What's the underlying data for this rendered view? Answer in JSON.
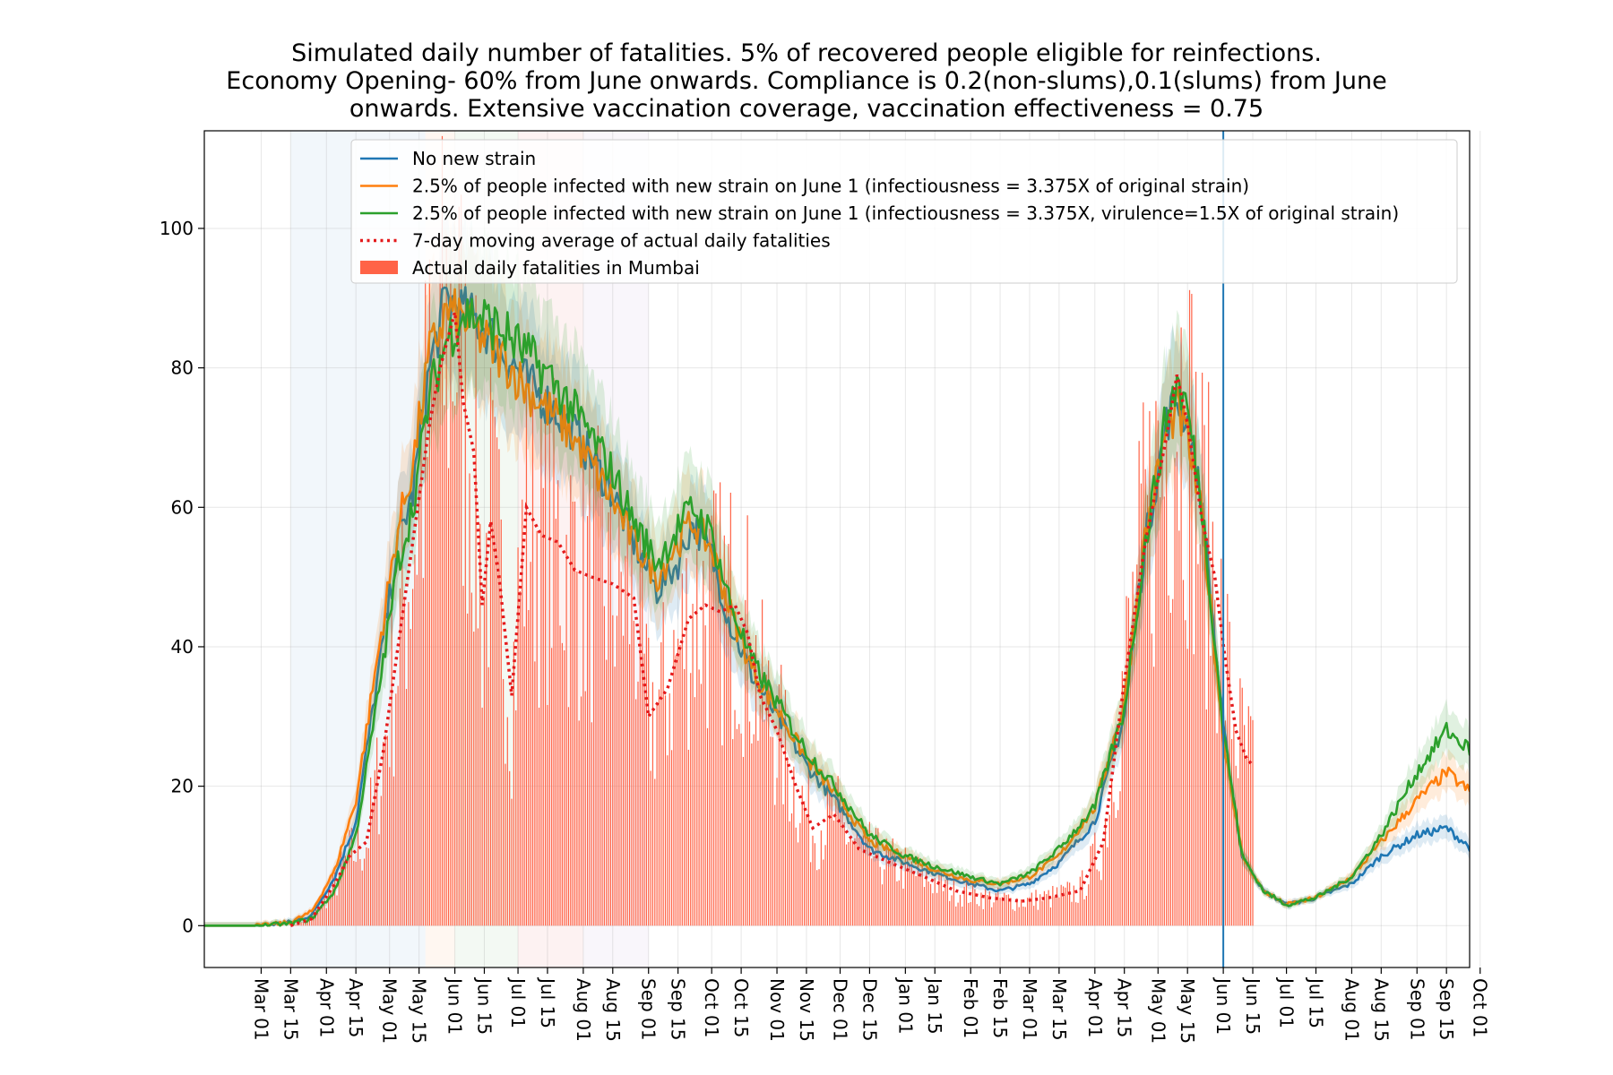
{
  "chart_data": {
    "type": "line",
    "title_lines": [
      "Simulated daily number of fatalities. 5% of recovered people eligible for reinfections.",
      "Economy Opening- 60% from June onwards. Compliance is 0.2(non-slums),0.1(slums) from June",
      "onwards. Extensive vaccination coverage, vaccination effectiveness = 0.75"
    ],
    "xlabel": "",
    "ylabel": "",
    "ylim": [
      -6,
      114
    ],
    "yticks": [
      0,
      20,
      40,
      60,
      80,
      100
    ],
    "xlim_days": [
      -27,
      574
    ],
    "date_origin": "2020-03-01",
    "xtick_labels": [
      "Mar 01",
      "Mar 15",
      "Apr 01",
      "Apr 15",
      "May 01",
      "May 15",
      "Jun 01",
      "Jun 15",
      "Jul 01",
      "Jul 15",
      "Aug 01",
      "Aug 15",
      "Sep 01",
      "Sep 15",
      "Oct 01",
      "Oct 15",
      "Nov 01",
      "Nov 15",
      "Dec 01",
      "Dec 15",
      "Jan 01",
      "Jan 15",
      "Feb 01",
      "Feb 15",
      "Mar 01",
      "Mar 15",
      "Apr 01",
      "Apr 15",
      "May 01",
      "May 15",
      "Jun 01",
      "Jun 15",
      "Jul 01",
      "Jul 15",
      "Aug 01",
      "Aug 15",
      "Sep 01",
      "Sep 15",
      "Oct 01"
    ],
    "xtick_dates": [
      "2020-03-01",
      "2020-03-15",
      "2020-04-01",
      "2020-04-15",
      "2020-05-01",
      "2020-05-15",
      "2020-06-01",
      "2020-06-15",
      "2020-07-01",
      "2020-07-15",
      "2020-08-01",
      "2020-08-15",
      "2020-09-01",
      "2020-09-15",
      "2020-10-01",
      "2020-10-15",
      "2020-11-01",
      "2020-11-15",
      "2020-12-01",
      "2020-12-15",
      "2021-01-01",
      "2021-01-15",
      "2021-02-01",
      "2021-02-15",
      "2021-03-01",
      "2021-03-15",
      "2021-04-01",
      "2021-04-15",
      "2021-05-01",
      "2021-05-15",
      "2021-06-01",
      "2021-06-15",
      "2021-07-01",
      "2021-07-15",
      "2021-08-01",
      "2021-08-15",
      "2021-09-01",
      "2021-09-15",
      "2021-10-01"
    ],
    "grid": true,
    "legend_placement": "upper-right",
    "vertical_line_date": "2021-06-01",
    "vertical_line_color": "#1f77b4",
    "shaded_periods": [
      {
        "start": "2020-03-15",
        "end": "2020-05-18",
        "color": "#1f77b4"
      },
      {
        "start": "2020-05-18",
        "end": "2020-06-01",
        "color": "#ff7f0e"
      },
      {
        "start": "2020-06-01",
        "end": "2020-07-01",
        "color": "#2ca02c"
      },
      {
        "start": "2020-07-01",
        "end": "2020-08-01",
        "color": "#d62728"
      },
      {
        "start": "2020-08-01",
        "end": "2020-09-01",
        "color": "#9467bd"
      }
    ],
    "series": [
      {
        "name": "No new strain",
        "kind": "line",
        "color": "#1f77b4",
        "points": [
          [
            "2020-02-03",
            0
          ],
          [
            "2020-03-01",
            0
          ],
          [
            "2020-03-15",
            0.5
          ],
          [
            "2020-03-25",
            1.5
          ],
          [
            "2020-04-05",
            7
          ],
          [
            "2020-04-15",
            15
          ],
          [
            "2020-04-25",
            35
          ],
          [
            "2020-05-05",
            55
          ],
          [
            "2020-05-12",
            62
          ],
          [
            "2020-05-20",
            80
          ],
          [
            "2020-05-28",
            90
          ],
          [
            "2020-06-05",
            88
          ],
          [
            "2020-06-15",
            86
          ],
          [
            "2020-06-25",
            82
          ],
          [
            "2020-07-05",
            78
          ],
          [
            "2020-07-15",
            75
          ],
          [
            "2020-07-25",
            72
          ],
          [
            "2020-08-05",
            67
          ],
          [
            "2020-08-15",
            62
          ],
          [
            "2020-08-25",
            55
          ],
          [
            "2020-09-05",
            48
          ],
          [
            "2020-09-15",
            52
          ],
          [
            "2020-09-22",
            58
          ],
          [
            "2020-10-01",
            53
          ],
          [
            "2020-10-10",
            43
          ],
          [
            "2020-10-20",
            36
          ],
          [
            "2020-11-01",
            30
          ],
          [
            "2020-11-15",
            23
          ],
          [
            "2020-12-01",
            17
          ],
          [
            "2020-12-15",
            11
          ],
          [
            "2021-01-01",
            9
          ],
          [
            "2021-01-15",
            7.5
          ],
          [
            "2021-02-01",
            6
          ],
          [
            "2021-02-15",
            5
          ],
          [
            "2021-03-01",
            6
          ],
          [
            "2021-03-15",
            9
          ],
          [
            "2021-04-01",
            15
          ],
          [
            "2021-04-15",
            30
          ],
          [
            "2021-04-25",
            55
          ],
          [
            "2021-05-05",
            72
          ],
          [
            "2021-05-10",
            76
          ],
          [
            "2021-05-15",
            72
          ],
          [
            "2021-05-22",
            60
          ],
          [
            "2021-06-01",
            28
          ],
          [
            "2021-06-10",
            10
          ],
          [
            "2021-06-20",
            5
          ],
          [
            "2021-07-01",
            3
          ],
          [
            "2021-07-15",
            4
          ],
          [
            "2021-08-01",
            6
          ],
          [
            "2021-08-15",
            10
          ],
          [
            "2021-09-01",
            13
          ],
          [
            "2021-09-15",
            14
          ],
          [
            "2021-10-01",
            10
          ],
          [
            "2021-10-10",
            7
          ]
        ]
      },
      {
        "name": "2.5% of people infected with new strain on June 1 (infectiousness = 3.375X of original strain)",
        "kind": "line",
        "color": "#ff7f0e",
        "points": [
          [
            "2020-02-03",
            0
          ],
          [
            "2020-03-01",
            0
          ],
          [
            "2020-03-15",
            0.5
          ],
          [
            "2020-03-25",
            2
          ],
          [
            "2020-04-05",
            8
          ],
          [
            "2020-04-15",
            18
          ],
          [
            "2020-04-25",
            38
          ],
          [
            "2020-05-05",
            57
          ],
          [
            "2020-05-12",
            66
          ],
          [
            "2020-05-20",
            82
          ],
          [
            "2020-05-28",
            88
          ],
          [
            "2020-06-05",
            87
          ],
          [
            "2020-06-15",
            84
          ],
          [
            "2020-06-25",
            81
          ],
          [
            "2020-07-05",
            77
          ],
          [
            "2020-07-15",
            74
          ],
          [
            "2020-07-25",
            71
          ],
          [
            "2020-08-05",
            66
          ],
          [
            "2020-08-15",
            61
          ],
          [
            "2020-08-25",
            55
          ],
          [
            "2020-09-05",
            50
          ],
          [
            "2020-09-15",
            55
          ],
          [
            "2020-09-22",
            58
          ],
          [
            "2020-10-01",
            54
          ],
          [
            "2020-10-10",
            45
          ],
          [
            "2020-10-20",
            37
          ],
          [
            "2020-11-01",
            31
          ],
          [
            "2020-11-15",
            24
          ],
          [
            "2020-12-01",
            18
          ],
          [
            "2020-12-15",
            12
          ],
          [
            "2021-01-01",
            10
          ],
          [
            "2021-01-15",
            8
          ],
          [
            "2021-02-01",
            6.5
          ],
          [
            "2021-02-15",
            6
          ],
          [
            "2021-03-01",
            7
          ],
          [
            "2021-03-15",
            10
          ],
          [
            "2021-04-01",
            17
          ],
          [
            "2021-04-15",
            32
          ],
          [
            "2021-04-25",
            56
          ],
          [
            "2021-05-05",
            71
          ],
          [
            "2021-05-10",
            74
          ],
          [
            "2021-05-15",
            70
          ],
          [
            "2021-05-22",
            58
          ],
          [
            "2021-06-01",
            27
          ],
          [
            "2021-06-10",
            10
          ],
          [
            "2021-06-20",
            5
          ],
          [
            "2021-07-01",
            3
          ],
          [
            "2021-07-15",
            4
          ],
          [
            "2021-08-01",
            7
          ],
          [
            "2021-08-15",
            12
          ],
          [
            "2021-09-01",
            18
          ],
          [
            "2021-09-15",
            22
          ],
          [
            "2021-10-01",
            18
          ],
          [
            "2021-10-10",
            14
          ]
        ]
      },
      {
        "name": "2.5% of people infected with new strain on June 1 (infectiousness = 3.375X, virulence=1.5X of original strain)",
        "kind": "line",
        "color": "#2ca02c",
        "points": [
          [
            "2020-02-03",
            0
          ],
          [
            "2020-03-01",
            0
          ],
          [
            "2020-03-15",
            0.3
          ],
          [
            "2020-03-25",
            1
          ],
          [
            "2020-04-05",
            5
          ],
          [
            "2020-04-15",
            13
          ],
          [
            "2020-04-25",
            32
          ],
          [
            "2020-05-05",
            52
          ],
          [
            "2020-05-12",
            60
          ],
          [
            "2020-05-20",
            76
          ],
          [
            "2020-05-28",
            84
          ],
          [
            "2020-06-05",
            88
          ],
          [
            "2020-06-15",
            87
          ],
          [
            "2020-06-25",
            85
          ],
          [
            "2020-07-05",
            82
          ],
          [
            "2020-07-15",
            79
          ],
          [
            "2020-07-25",
            75
          ],
          [
            "2020-08-05",
            70
          ],
          [
            "2020-08-15",
            65
          ],
          [
            "2020-08-25",
            58
          ],
          [
            "2020-09-05",
            52
          ],
          [
            "2020-09-15",
            57
          ],
          [
            "2020-09-22",
            60
          ],
          [
            "2020-10-01",
            56
          ],
          [
            "2020-10-10",
            46
          ],
          [
            "2020-10-20",
            38
          ],
          [
            "2020-11-01",
            32
          ],
          [
            "2020-11-15",
            25
          ],
          [
            "2020-12-01",
            19
          ],
          [
            "2020-12-15",
            13
          ],
          [
            "2021-01-01",
            10
          ],
          [
            "2021-01-15",
            8.5
          ],
          [
            "2021-02-01",
            7
          ],
          [
            "2021-02-15",
            6
          ],
          [
            "2021-03-01",
            7.5
          ],
          [
            "2021-03-15",
            11
          ],
          [
            "2021-04-01",
            17
          ],
          [
            "2021-04-15",
            31
          ],
          [
            "2021-04-25",
            55
          ],
          [
            "2021-05-05",
            73
          ],
          [
            "2021-05-10",
            78
          ],
          [
            "2021-05-15",
            74
          ],
          [
            "2021-05-22",
            60
          ],
          [
            "2021-06-01",
            28
          ],
          [
            "2021-06-10",
            10
          ],
          [
            "2021-06-20",
            5
          ],
          [
            "2021-07-01",
            3
          ],
          [
            "2021-07-15",
            4
          ],
          [
            "2021-08-01",
            7
          ],
          [
            "2021-08-15",
            13
          ],
          [
            "2021-09-01",
            22
          ],
          [
            "2021-09-15",
            28
          ],
          [
            "2021-10-01",
            24
          ],
          [
            "2021-10-10",
            20
          ]
        ]
      },
      {
        "name": "7-day moving average of actual daily fatalities",
        "kind": "dotted",
        "color": "#e41a1c",
        "points": [
          [
            "2020-03-15",
            0
          ],
          [
            "2020-03-25",
            1
          ],
          [
            "2020-04-05",
            6
          ],
          [
            "2020-04-12",
            10
          ],
          [
            "2020-04-20",
            12
          ],
          [
            "2020-04-28",
            25
          ],
          [
            "2020-05-05",
            40
          ],
          [
            "2020-05-12",
            55
          ],
          [
            "2020-05-20",
            72
          ],
          [
            "2020-05-25",
            80
          ],
          [
            "2020-06-01",
            88
          ],
          [
            "2020-06-05",
            75
          ],
          [
            "2020-06-10",
            68
          ],
          [
            "2020-06-14",
            46
          ],
          [
            "2020-06-18",
            58
          ],
          [
            "2020-06-22",
            50
          ],
          [
            "2020-06-28",
            33
          ],
          [
            "2020-07-05",
            60
          ],
          [
            "2020-07-12",
            56
          ],
          [
            "2020-07-20",
            55
          ],
          [
            "2020-07-28",
            51
          ],
          [
            "2020-08-05",
            50
          ],
          [
            "2020-08-15",
            49
          ],
          [
            "2020-08-25",
            47
          ],
          [
            "2020-09-01",
            30
          ],
          [
            "2020-09-10",
            34
          ],
          [
            "2020-09-20",
            44
          ],
          [
            "2020-09-28",
            46
          ],
          [
            "2020-10-05",
            45
          ],
          [
            "2020-10-12",
            46
          ],
          [
            "2020-10-18",
            42
          ],
          [
            "2020-10-24",
            33
          ],
          [
            "2020-11-01",
            28
          ],
          [
            "2020-11-10",
            20
          ],
          [
            "2020-11-18",
            14
          ],
          [
            "2020-11-28",
            16
          ],
          [
            "2020-12-10",
            11
          ],
          [
            "2020-12-25",
            9
          ],
          [
            "2021-01-10",
            7
          ],
          [
            "2021-01-25",
            5
          ],
          [
            "2021-02-10",
            4
          ],
          [
            "2021-02-25",
            3.5
          ],
          [
            "2021-03-10",
            4
          ],
          [
            "2021-03-25",
            5
          ],
          [
            "2021-04-05",
            12
          ],
          [
            "2021-04-15",
            35
          ],
          [
            "2021-04-25",
            55
          ],
          [
            "2021-05-05",
            70
          ],
          [
            "2021-05-10",
            79
          ],
          [
            "2021-05-15",
            72
          ],
          [
            "2021-05-22",
            58
          ],
          [
            "2021-05-28",
            50
          ],
          [
            "2021-06-02",
            38
          ],
          [
            "2021-06-07",
            28
          ],
          [
            "2021-06-12",
            24
          ],
          [
            "2021-06-15",
            23
          ]
        ]
      },
      {
        "name": "Actual daily fatalities in Mumbai",
        "kind": "bars",
        "color": "#ff6347",
        "range_start": "2020-03-15",
        "range_end": "2021-06-15"
      }
    ]
  }
}
